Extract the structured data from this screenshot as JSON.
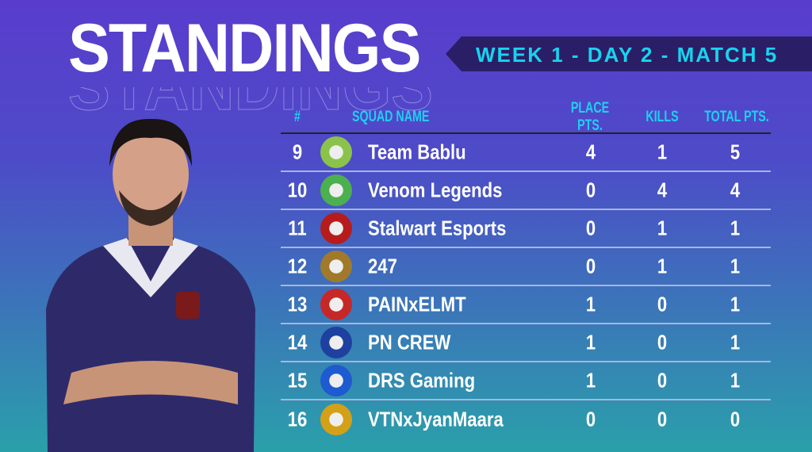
{
  "title": "STANDINGS",
  "banner": "WEEK 1 - DAY 2 - MATCH 5",
  "headers": {
    "rank": "#",
    "squad": "SQUAD NAME",
    "place": "PLACE PTS.",
    "kills": "KILLS",
    "total": "TOTAL PTS."
  },
  "rows": [
    {
      "rank": "9",
      "name": "Team Bablu",
      "place": "4",
      "kills": "1",
      "total": "5",
      "logo_color": "#8bc34a"
    },
    {
      "rank": "10",
      "name": "Venom Legends",
      "place": "0",
      "kills": "4",
      "total": "4",
      "logo_color": "#4caf50"
    },
    {
      "rank": "11",
      "name": "Stalwart Esports",
      "place": "0",
      "kills": "1",
      "total": "1",
      "logo_color": "#b71c1c"
    },
    {
      "rank": "12",
      "name": "247",
      "place": "0",
      "kills": "1",
      "total": "1",
      "logo_color": "#a07a2a"
    },
    {
      "rank": "13",
      "name": "PAINxELMT",
      "place": "1",
      "kills": "0",
      "total": "1",
      "logo_color": "#c62828"
    },
    {
      "rank": "14",
      "name": "PN CREW",
      "place": "1",
      "kills": "0",
      "total": "1",
      "logo_color": "#1e40a0"
    },
    {
      "rank": "15",
      "name": "DRS Gaming",
      "place": "1",
      "kills": "0",
      "total": "1",
      "logo_color": "#1e5ad0"
    },
    {
      "rank": "16",
      "name": "VTNxJyanMaara",
      "place": "0",
      "kills": "0",
      "total": "0",
      "logo_color": "#d4a017"
    }
  ],
  "colors": {
    "accent": "#19d3ee",
    "banner_bg": "#2a1f66"
  }
}
